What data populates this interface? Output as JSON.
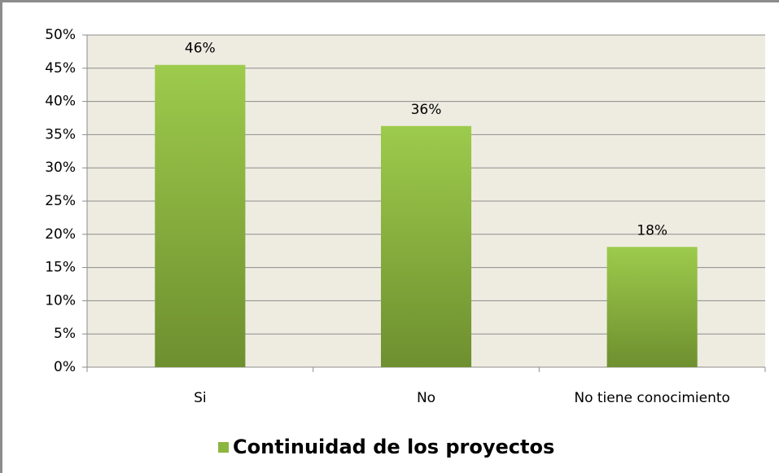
{
  "chart_data": {
    "type": "bar",
    "categories": [
      "Si",
      "No",
      "No tiene conocimiento"
    ],
    "series": [
      {
        "name": "Continuidad de los proyectos",
        "color": "#8cb63f",
        "values": [
          45.5,
          36.3,
          18.1
        ],
        "value_labels": [
          "46%",
          "36%",
          "18%"
        ]
      }
    ],
    "ylim": [
      0,
      50
    ],
    "yticks": [
      {
        "value": 0,
        "label": "0%"
      },
      {
        "value": 5,
        "label": "5%"
      },
      {
        "value": 10,
        "label": "10%"
      },
      {
        "value": 15,
        "label": "15%"
      },
      {
        "value": 20,
        "label": "20%"
      },
      {
        "value": 25,
        "label": "25%"
      },
      {
        "value": 30,
        "label": "30%"
      },
      {
        "value": 35,
        "label": "35%"
      },
      {
        "value": 40,
        "label": "40%"
      },
      {
        "value": 45,
        "label": "45%"
      },
      {
        "value": 50,
        "label": "50%"
      }
    ],
    "grid": true,
    "legend": "bottom"
  }
}
